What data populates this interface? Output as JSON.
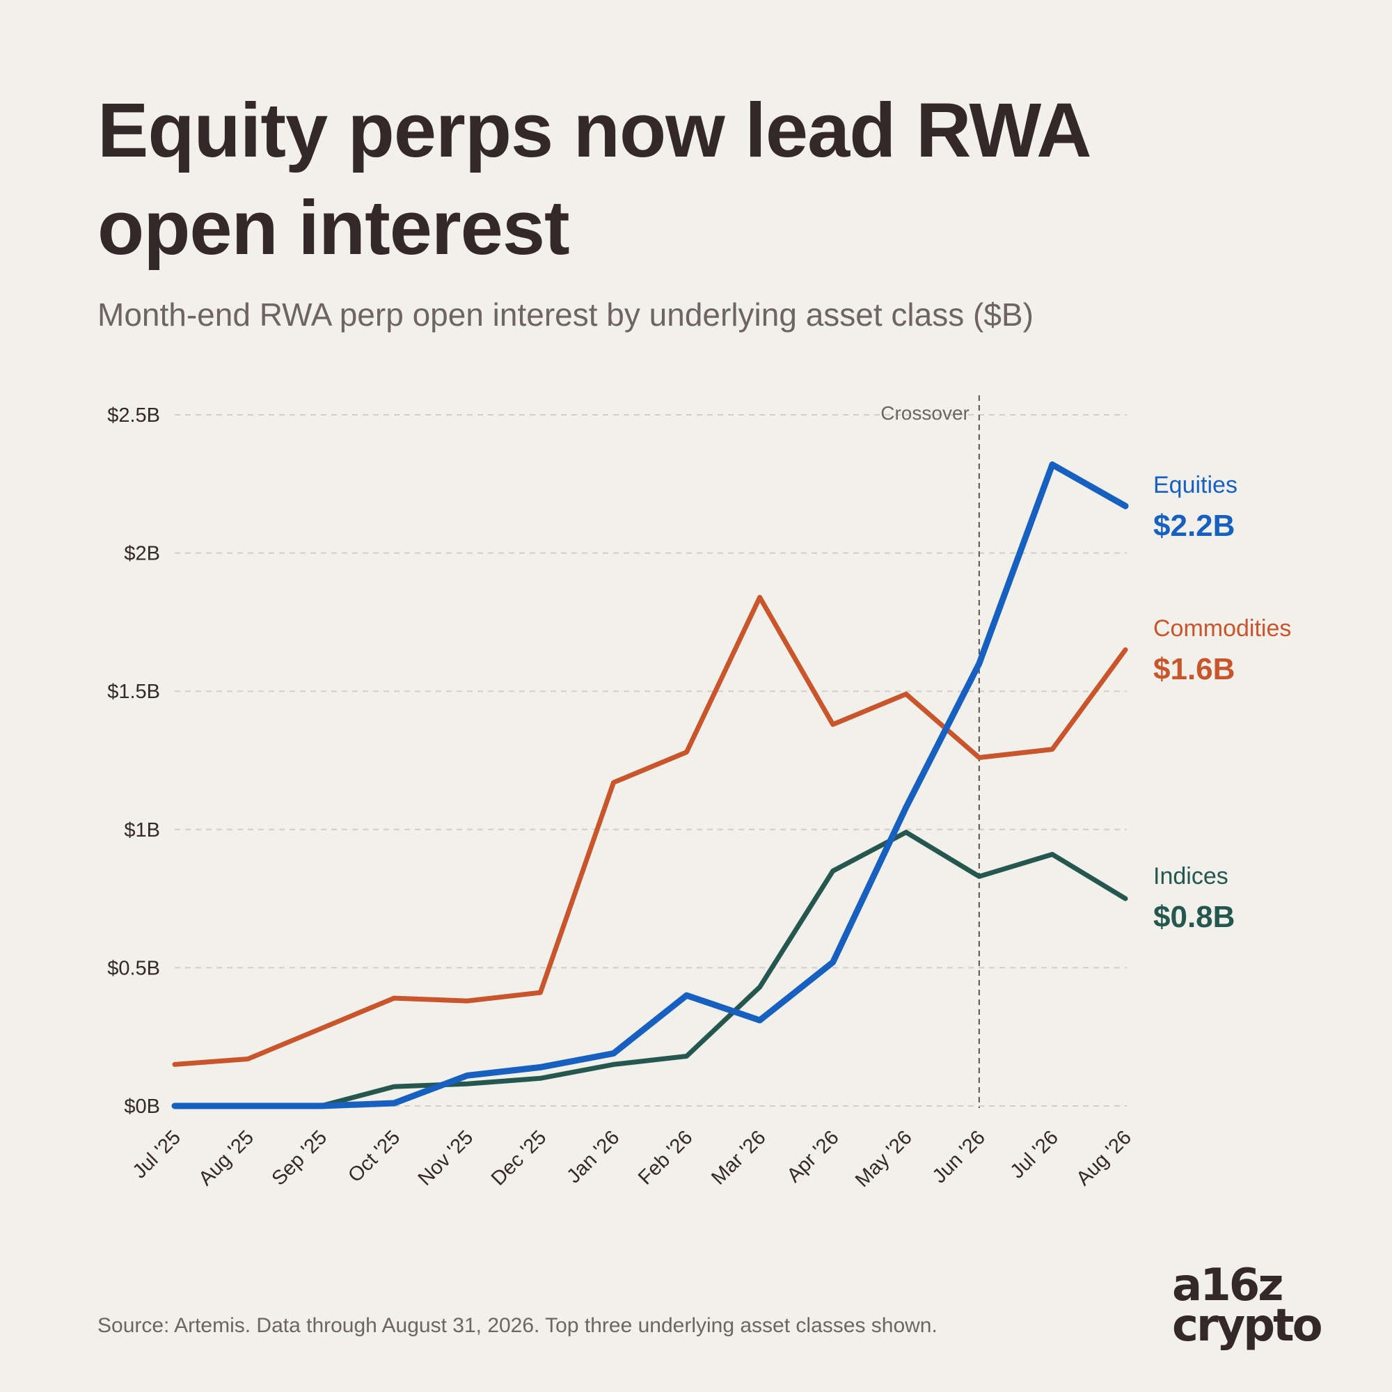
{
  "title": "Equity perps now lead RWA open interest",
  "subtitle": "Month-end RWA perp open interest by underlying asset class ($B)",
  "source": "Source: Artemis. Data through August 31, 2026. Top three underlying asset classes shown.",
  "logo": {
    "line1": "a16z",
    "line2": "crypto"
  },
  "colors": {
    "background": "#f2f0ea",
    "equities": "#1760c0",
    "commodities": "#c9552c",
    "indices": "#26574f",
    "text": "#342829",
    "muted": "#6d6463"
  },
  "chart_data": {
    "type": "line",
    "x": [
      "Jul '25",
      "Aug '25",
      "Sep '25",
      "Oct '25",
      "Nov '25",
      "Dec '25",
      "Jan '26",
      "Feb '26",
      "Mar '26",
      "Apr '26",
      "May '26",
      "Jun '26",
      "Jul '26",
      "Aug '26"
    ],
    "y_ticks": [
      0,
      0.5,
      1,
      1.5,
      2,
      2.5
    ],
    "y_tick_labels": [
      "$0B",
      "$0.5B",
      "$1B",
      "$1.5B",
      "$2B",
      "$2.5B"
    ],
    "ylim": [
      0,
      2.5
    ],
    "grid": "horizontal dashed",
    "series": [
      {
        "name": "Commodities",
        "end_label": "$1.6B",
        "color": "#c9552c",
        "values": [
          0.15,
          0.17,
          0.28,
          0.39,
          0.38,
          0.41,
          1.17,
          1.28,
          1.84,
          1.38,
          1.49,
          1.26,
          1.29,
          1.65
        ]
      },
      {
        "name": "Indices",
        "end_label": "$0.8B",
        "color": "#26574f",
        "values": [
          0.0,
          0.0,
          0.0,
          0.07,
          0.08,
          0.1,
          0.15,
          0.18,
          0.43,
          0.85,
          0.99,
          0.83,
          0.91,
          0.75
        ]
      },
      {
        "name": "Equities",
        "end_label": "$2.2B",
        "color": "#1760c0",
        "values": [
          0.0,
          0.0,
          0.0,
          0.01,
          0.11,
          0.14,
          0.19,
          0.4,
          0.31,
          0.52,
          1.08,
          1.6,
          2.32,
          2.17
        ]
      }
    ],
    "annotation": {
      "label": "Crossover",
      "x": "Jun '26"
    }
  }
}
